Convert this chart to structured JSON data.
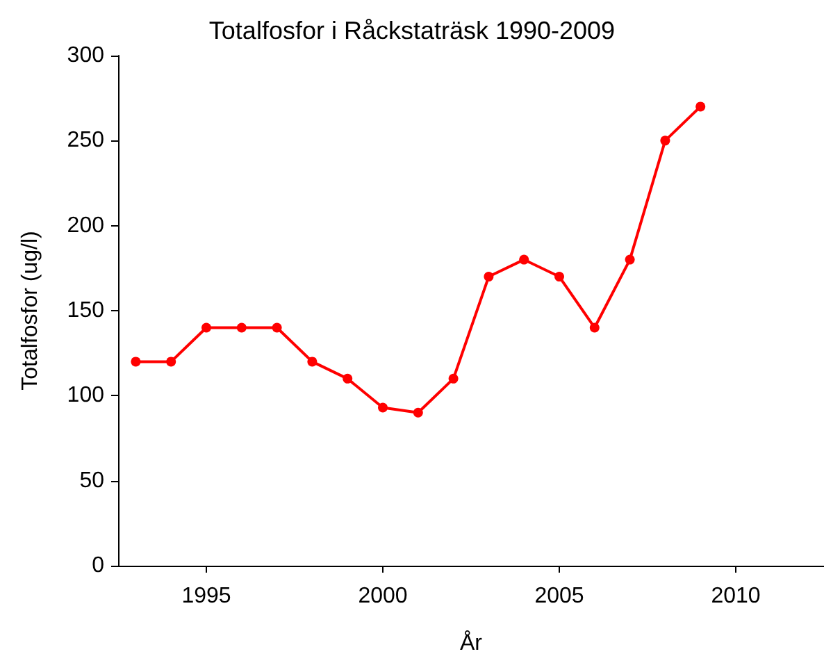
{
  "chart_data": {
    "type": "line",
    "title": "Totalfosfor i Råckstaträsk 1990-2009",
    "xlabel": "År",
    "ylabel": "Totalfosfor (ug/l)",
    "x": [
      1993,
      1994,
      1995,
      1996,
      1997,
      1998,
      1999,
      2000,
      2001,
      2002,
      2003,
      2004,
      2005,
      2006,
      2007,
      2008,
      2009
    ],
    "series": [
      {
        "color": "#ff0000",
        "values": [
          120,
          120,
          140,
          140,
          140,
          120,
          110,
          93,
          90,
          110,
          170,
          180,
          170,
          140,
          180,
          250,
          270
        ]
      }
    ],
    "xlim": [
      1992.5,
      2012.5
    ],
    "xticks": [
      1995,
      2000,
      2005,
      2010
    ],
    "ylim": [
      0,
      300
    ],
    "yticks": [
      0,
      50,
      100,
      150,
      200,
      250,
      300
    ],
    "grid": false,
    "marker": "circle",
    "line_style": "solid"
  }
}
